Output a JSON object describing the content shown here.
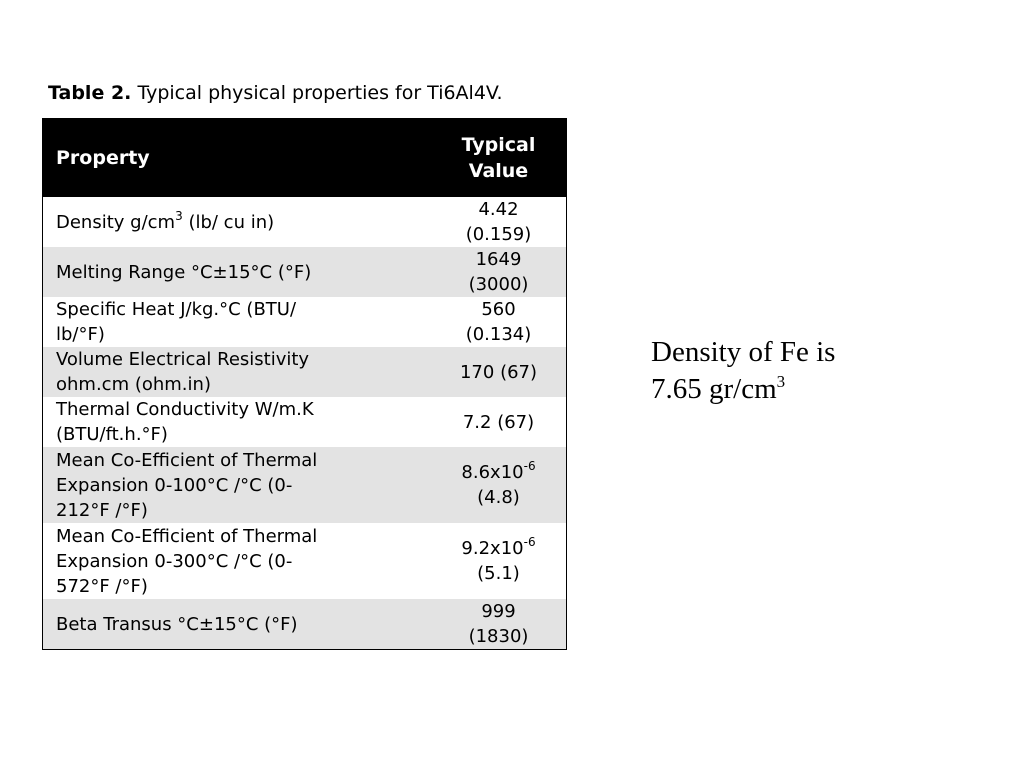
{
  "caption": {
    "label": "Table 2.",
    "text": "Typical physical properties for Ti6Al4V."
  },
  "table": {
    "headers": {
      "property": "Property",
      "value_line1": "Typical",
      "value_line2": "Value"
    },
    "rows": [
      {
        "p1": "Density g/cm",
        "p_sup": "3",
        "p2": " (lb/ cu in)",
        "v1": "4.42",
        "v2": "(0.159)"
      },
      {
        "p1": "Melting Range °C±15°C (°F)",
        "v1": "1649",
        "v2": "(3000)"
      },
      {
        "p1": "Specific Heat J/kg.°C (BTU/",
        "p2": "lb/°F)",
        "v1": "560",
        "v2": "(0.134)"
      },
      {
        "p1": "Volume Electrical Resistivity",
        "p2": "ohm.cm (ohm.in)",
        "v1": "170 (67)"
      },
      {
        "p1": "Thermal Conductivity W/m.K",
        "p2": "(BTU/ft.h.°F)",
        "v1": "7.2 (67)"
      },
      {
        "p1": "Mean Co-Efficient of Thermal",
        "p2": "Expansion 0-100°C /°C (0-",
        "p3": "212°F /°F)",
        "v_base": "8.6x10",
        "v_sup": "-6",
        "v2": "(4.8)"
      },
      {
        "p1": "Mean Co-Efficient of Thermal",
        "p2": "Expansion 0-300°C /°C (0-",
        "p3": "572°F /°F)",
        "v_base": "9.2x10",
        "v_sup": "-6",
        "v2": "(5.1)"
      },
      {
        "p1": "Beta Transus °C±15°C (°F)",
        "v1": "999",
        "v2": "(1830)"
      }
    ]
  },
  "note": {
    "line1": "Density of Fe is",
    "line2": "7.65 gr/cm",
    "line2_sup": "3"
  }
}
